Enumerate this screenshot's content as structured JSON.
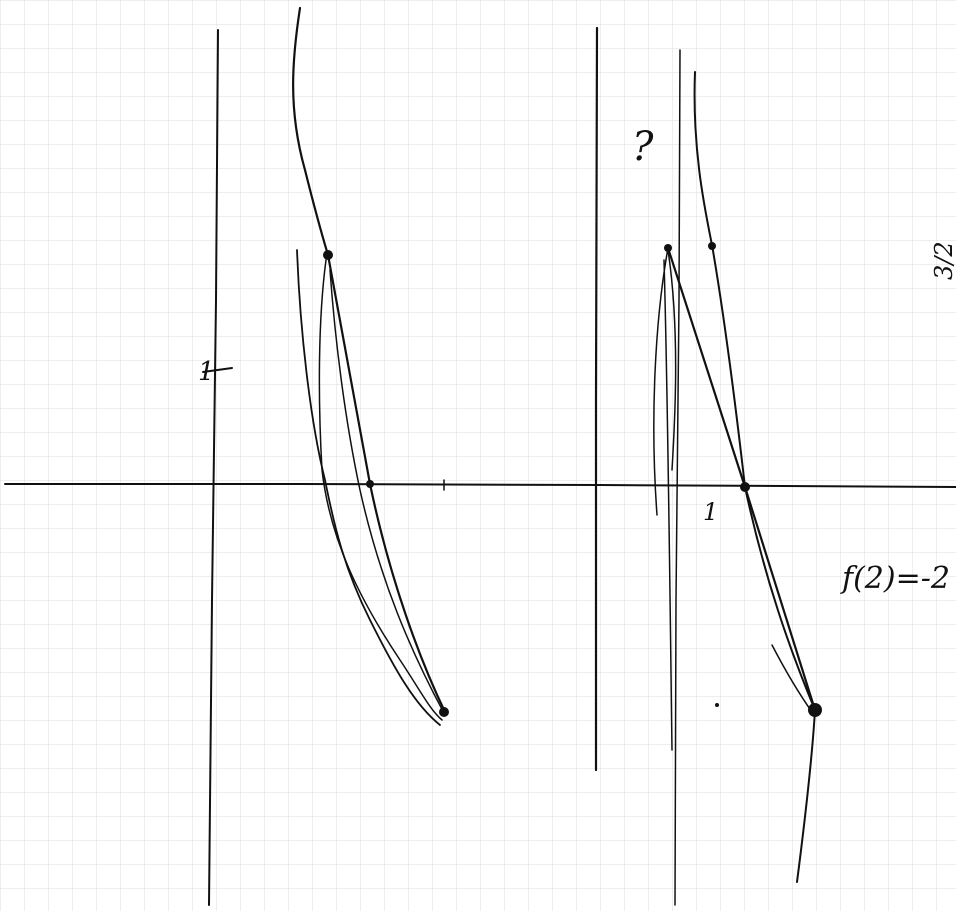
{
  "left_graph": {
    "y_label": "1"
  },
  "right_graph": {
    "x_label": "1",
    "annotation": "f(2)=-2",
    "side_note": "3/2",
    "top_note": "?"
  }
}
